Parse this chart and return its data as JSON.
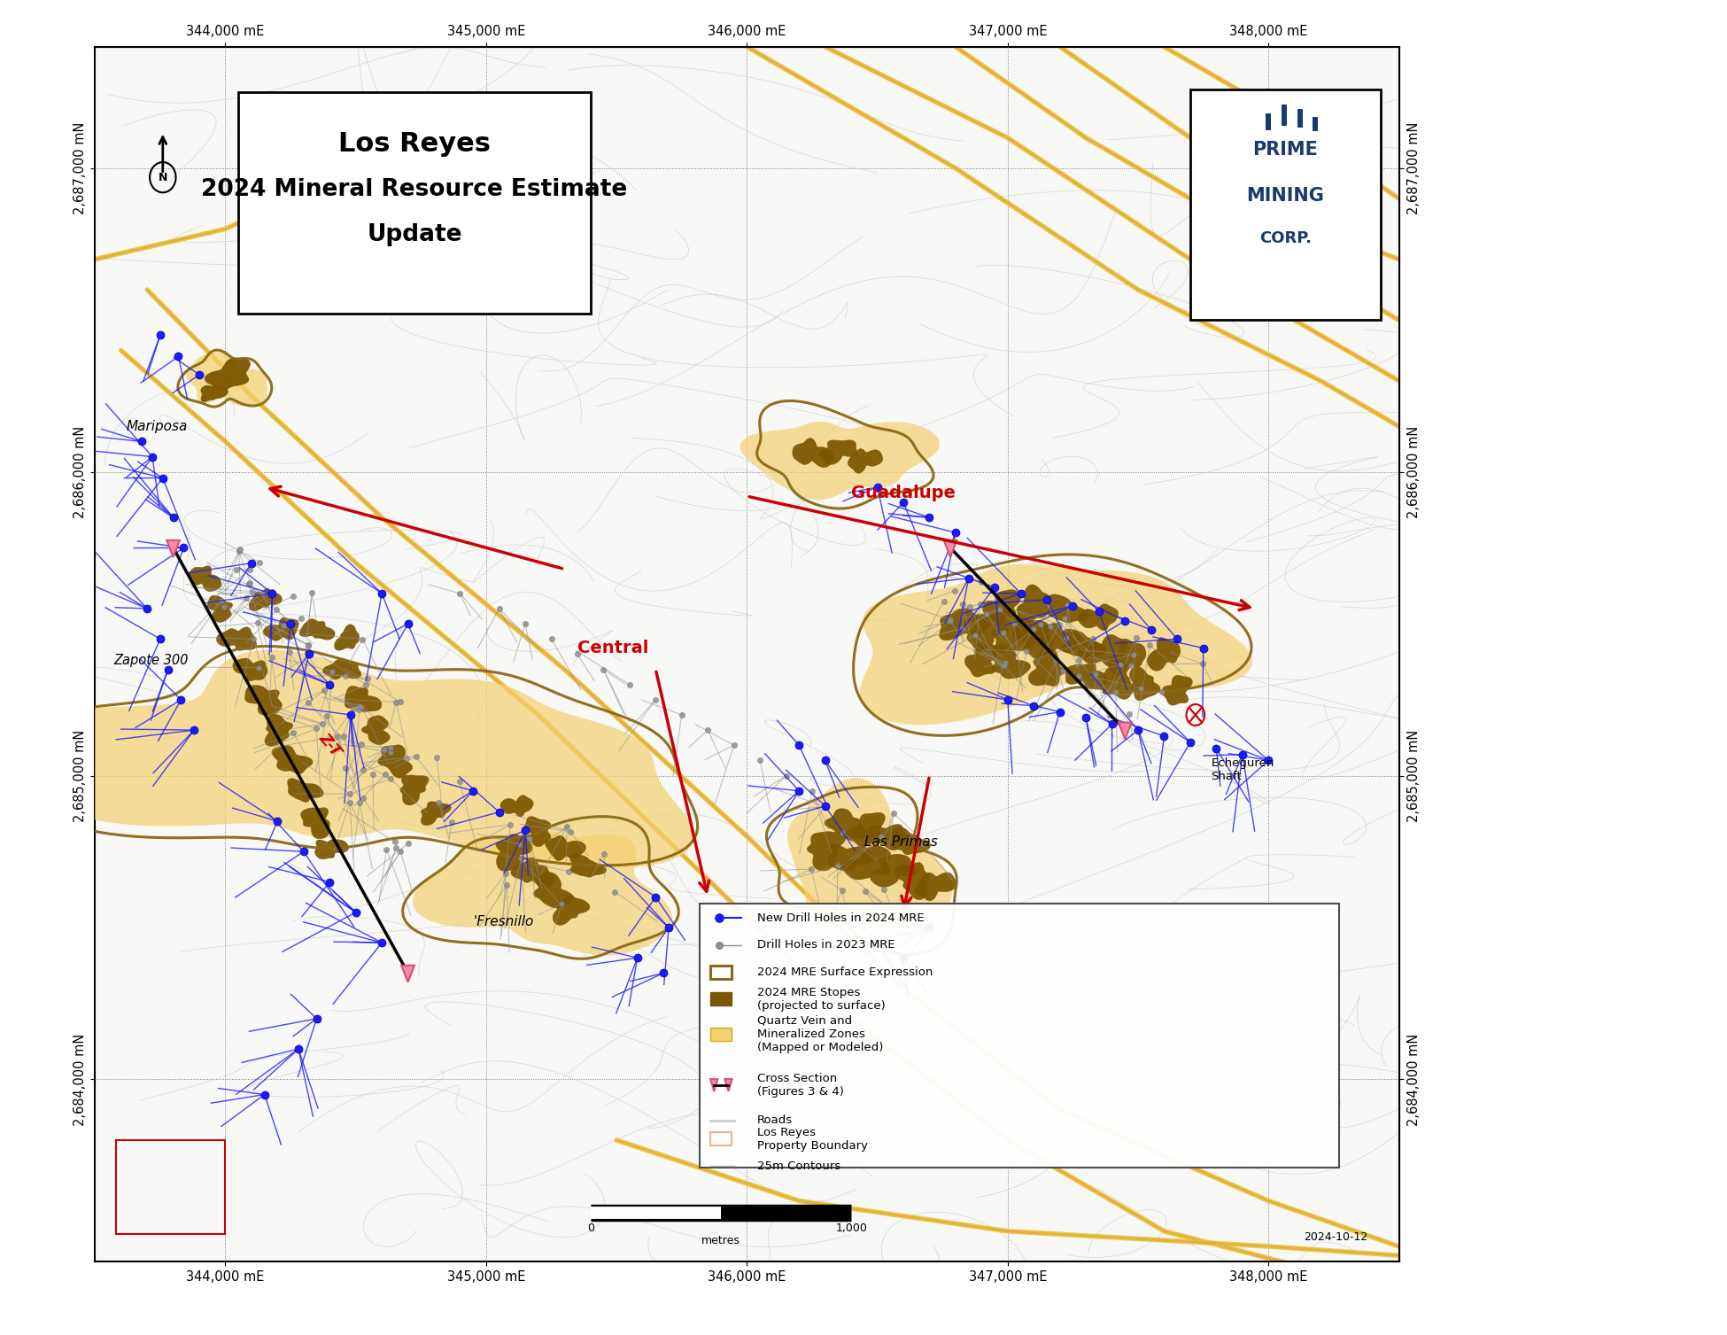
{
  "title_line1": "Los Reyes",
  "title_line2": "2024 Mineral Resource Estimate",
  "title_line3": "Update",
  "bg_color": "#ffffff",
  "map_bg": "#f8f8f6",
  "xlim": [
    343500,
    348500
  ],
  "ylim": [
    2683400,
    2687400
  ],
  "xticks": [
    344000,
    345000,
    346000,
    347000,
    348000
  ],
  "yticks": [
    2684000,
    2685000,
    2686000,
    2687000
  ],
  "contour_color": "#c8c8c8",
  "road_color": "#f0c040",
  "mre_surface_color": "#8B6914",
  "mre_stopes_color": "#7B5500",
  "quartz_vein_color": "#f5d070",
  "drill_2024_color": "#1a1aff",
  "drill_2023_color": "#909090",
  "red_color": "#cc0000",
  "date_text": "2024-10-12"
}
